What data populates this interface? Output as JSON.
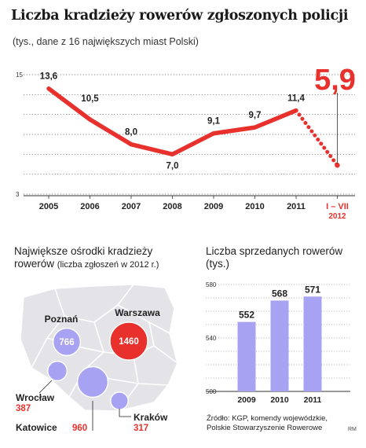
{
  "chart_data": [
    {
      "type": "line",
      "title": "Liczba kradzieży rowerów zgłoszonych policji",
      "subtitle": "(tys., dane z 16 największych miast Polski)",
      "categories": [
        "2005",
        "2006",
        "2007",
        "2008",
        "2009",
        "2010",
        "2011",
        "I – VII"
      ],
      "highlight_sub": "2012",
      "values": [
        13.6,
        10.5,
        8.0,
        7.0,
        9.1,
        9.7,
        11.4,
        5.9
      ],
      "value_labels": [
        "13,6",
        "10,5",
        "8,0",
        "7,0",
        "9,1",
        "9,7",
        "11,4",
        "5,9"
      ],
      "ytick_labels": [
        "15",
        "3"
      ],
      "ylim": [
        3,
        15
      ],
      "grid": true,
      "line_color": "#e8302c",
      "last_segment_style": "dotted"
    },
    {
      "type": "scatter",
      "title_main": "Największe ośrodki kradzieży",
      "title_line2": "rowerów",
      "title_note": "(liczba zgłoszeń w 2012 r.)",
      "points": [
        {
          "city": "Warszawa",
          "value": 1460,
          "value_label": "1460"
        },
        {
          "city": "Katowice",
          "value": 960,
          "value_label": "960"
        },
        {
          "city": "Poznań",
          "value": 766,
          "value_label": "766"
        },
        {
          "city": "Wrocław",
          "value": 387,
          "value_label": "387"
        },
        {
          "city": "Kraków",
          "value": 317,
          "value_label": "317"
        }
      ],
      "colors": {
        "bubble": "#a8a2f2",
        "highlight": "#e8302c",
        "map": "#e4e4e8"
      }
    },
    {
      "type": "bar",
      "title": "Liczba sprzedanych rowerów",
      "ylabel": "(tys.)",
      "categories": [
        "2009",
        "2010",
        "2011"
      ],
      "values": [
        552,
        568,
        571
      ],
      "ylim": [
        500,
        580
      ],
      "ytick_labels": [
        "580",
        "540",
        "500"
      ],
      "grid": true,
      "bar_color": "#a8a2f2"
    }
  ],
  "source": [
    "Źródło: KGP, komendy wojewódzkie,",
    "Polskie Stowarzyszenie Rowerowe"
  ],
  "author": "RM",
  "colors": {
    "accent": "#e8302c",
    "violet": "#a8a2f2",
    "background": "#ffffff"
  }
}
